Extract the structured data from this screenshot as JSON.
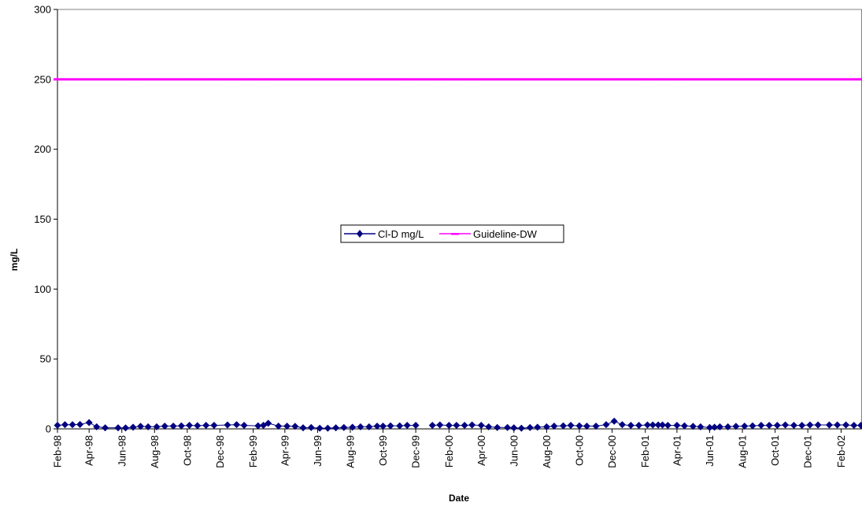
{
  "chart_data": {
    "type": "line",
    "title": "",
    "xlabel": "Date",
    "ylabel": "mg/L",
    "ylim": [
      0,
      300
    ],
    "yticks": [
      0,
      50,
      100,
      150,
      200,
      250,
      300
    ],
    "xlim": [
      "1998-02-01",
      "2002-03-12"
    ],
    "xtick_dates": [
      "1998-02-01",
      "1998-04-01",
      "1998-06-01",
      "1998-08-01",
      "1998-10-01",
      "1998-12-01",
      "1999-02-01",
      "1999-04-01",
      "1999-06-01",
      "1999-08-01",
      "1999-10-01",
      "1999-12-01",
      "2000-02-01",
      "2000-04-01",
      "2000-06-01",
      "2000-08-01",
      "2000-10-01",
      "2000-12-01",
      "2001-02-01",
      "2001-04-01",
      "2001-06-01",
      "2001-08-01",
      "2001-10-01",
      "2001-12-01",
      "2002-02-01"
    ],
    "xtick_labels": [
      "Feb-98",
      "Apr-98",
      "Jun-98",
      "Aug-98",
      "Oct-98",
      "Dec-98",
      "Feb-99",
      "Apr-99",
      "Jun-99",
      "Aug-99",
      "Oct-99",
      "Dec-99",
      "Feb-00",
      "Apr-00",
      "Jun-00",
      "Aug-00",
      "Oct-00",
      "Dec-00",
      "Feb-01",
      "Apr-01",
      "Jun-01",
      "Aug-01",
      "Oct-01",
      "Dec-01",
      "Feb-02"
    ],
    "grid": false,
    "legend_position": "center",
    "series": [
      {
        "name": "Cl-D mg/L",
        "color": "#000080",
        "marker": "diamond",
        "segments": [
          [
            [
              "1998-02-01",
              2.5
            ],
            [
              "1998-02-15",
              3
            ],
            [
              "1998-03-01",
              3
            ],
            [
              "1998-03-15",
              3.2
            ],
            [
              "1998-04-01",
              4.5
            ],
            [
              "1998-04-15",
              1.5
            ],
            [
              "1998-05-01",
              0.8
            ],
            [
              "1998-05-25",
              0.8
            ],
            [
              "1998-06-08",
              0.7
            ],
            [
              "1998-06-22",
              1.2
            ],
            [
              "1998-07-06",
              1.8
            ],
            [
              "1998-07-20",
              1.5
            ],
            [
              "1998-08-05",
              1.5
            ],
            [
              "1998-08-20",
              2
            ],
            [
              "1998-09-05",
              2
            ],
            [
              "1998-09-20",
              2.2
            ],
            [
              "1998-10-05",
              2.5
            ],
            [
              "1998-10-20",
              2.3
            ],
            [
              "1998-11-05",
              2.5
            ],
            [
              "1998-11-20",
              2.5
            ],
            [
              "1998-12-15",
              2.8
            ],
            [
              "1999-01-01",
              3
            ],
            [
              "1999-01-15",
              2.5
            ],
            [
              "1999-02-10",
              2.2
            ],
            [
              "1999-02-20",
              2.5
            ],
            [
              "1999-03-01",
              4
            ],
            [
              "1999-03-20",
              2
            ],
            [
              "1999-04-05",
              2
            ],
            [
              "1999-04-20",
              1.8
            ],
            [
              "1999-05-05",
              0.8
            ],
            [
              "1999-05-20",
              1
            ],
            [
              "1999-06-05",
              0.5
            ],
            [
              "1999-06-20",
              0.5
            ],
            [
              "1999-07-05",
              0.8
            ],
            [
              "1999-07-20",
              1
            ],
            [
              "1999-08-05",
              1.2
            ],
            [
              "1999-08-20",
              1.5
            ],
            [
              "1999-09-05",
              1.5
            ],
            [
              "1999-09-20",
              2
            ],
            [
              "1999-10-01",
              2
            ],
            [
              "1999-10-15",
              2.2
            ],
            [
              "1999-11-01",
              2.2
            ],
            [
              "1999-11-15",
              2.5
            ],
            [
              "1999-12-01",
              2.5
            ]
          ],
          [
            [
              "2000-01-01",
              2.5
            ],
            [
              "2000-01-15",
              2.8
            ],
            [
              "2000-02-01",
              2.5
            ],
            [
              "2000-02-15",
              2.5
            ],
            [
              "2000-03-01",
              2.5
            ],
            [
              "2000-03-15",
              2.8
            ],
            [
              "2000-04-01",
              2.5
            ],
            [
              "2000-04-15",
              1.5
            ],
            [
              "2000-05-01",
              1
            ],
            [
              "2000-05-20",
              1
            ],
            [
              "2000-06-01",
              0.8
            ],
            [
              "2000-06-15",
              0.5
            ],
            [
              "2000-07-01",
              1
            ],
            [
              "2000-07-15",
              1.2
            ],
            [
              "2000-08-01",
              1.5
            ],
            [
              "2000-08-15",
              2
            ],
            [
              "2000-09-01",
              2.2
            ],
            [
              "2000-09-15",
              2.5
            ],
            [
              "2000-10-01",
              2.2
            ],
            [
              "2000-10-15",
              2
            ],
            [
              "2000-11-01",
              2
            ],
            [
              "2000-11-20",
              3
            ],
            [
              "2000-12-05",
              5.5
            ],
            [
              "2000-12-20",
              3
            ],
            [
              "2001-01-05",
              2.5
            ],
            [
              "2001-01-20",
              2.5
            ],
            [
              "2001-02-05",
              2.8
            ],
            [
              "2001-02-15",
              2.8
            ],
            [
              "2001-02-25",
              2.8
            ],
            [
              "2001-03-05",
              2.8
            ],
            [
              "2001-03-15",
              2.5
            ],
            [
              "2001-04-01",
              2.5
            ],
            [
              "2001-04-15",
              2.2
            ],
            [
              "2001-05-01",
              1.8
            ],
            [
              "2001-05-15",
              1.5
            ],
            [
              "2001-06-01",
              1
            ],
            [
              "2001-06-10",
              1.2
            ],
            [
              "2001-06-20",
              1.5
            ],
            [
              "2001-07-05",
              1.5
            ],
            [
              "2001-07-20",
              1.8
            ],
            [
              "2001-08-05",
              2
            ],
            [
              "2001-08-20",
              2.2
            ],
            [
              "2001-09-05",
              2.5
            ],
            [
              "2001-09-20",
              2.5
            ],
            [
              "2001-10-05",
              2.5
            ],
            [
              "2001-10-20",
              2.8
            ],
            [
              "2001-11-05",
              2.5
            ],
            [
              "2001-11-20",
              2.5
            ],
            [
              "2001-12-05",
              2.8
            ],
            [
              "2001-12-20",
              2.8
            ],
            [
              "2002-01-10",
              2.8
            ],
            [
              "2002-01-25",
              2.8
            ],
            [
              "2002-02-10",
              2.8
            ],
            [
              "2002-02-25",
              2.5
            ],
            [
              "2002-03-10",
              2.5
            ]
          ]
        ]
      },
      {
        "name": "Guideline-DW",
        "color": "#FF00FF",
        "marker": "dash",
        "constant": 250
      }
    ]
  }
}
